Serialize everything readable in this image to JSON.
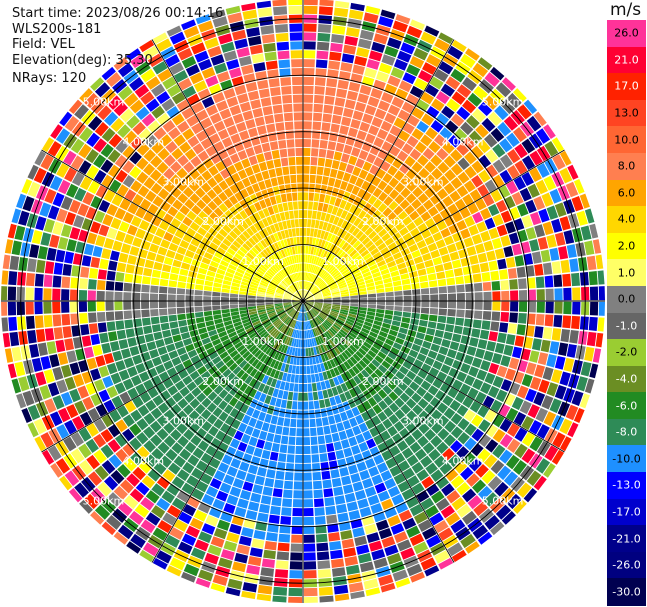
{
  "header": {
    "start_time": "Start time: 2023/08/26 00:14:16",
    "instrument": "WLS200s-181",
    "field": "Field: VEL",
    "elevation": "Elevation(deg): 35.30",
    "nrays": "NRays: 120"
  },
  "colorbar": {
    "unit": "m/s",
    "labels": [
      "26.0",
      "21.0",
      "17.0",
      "13.0",
      "10.0",
      "8.0",
      "6.0",
      "4.0",
      "2.0",
      "1.0",
      "0.0",
      "-1.0",
      "-2.0",
      "-4.0",
      "-6.0",
      "-8.0",
      "-10.0",
      "-13.0",
      "-17.0",
      "-21.0",
      "-26.0",
      "-30.0"
    ],
    "colors": [
      "#ff3399",
      "#ff0033",
      "#ff2200",
      "#ff4422",
      "#ff6633",
      "#ff7f50",
      "#ffa500",
      "#ffd700",
      "#ffff00",
      "#ffff66",
      "#808080",
      "#666666",
      "#9acd32",
      "#6b8e23",
      "#228b22",
      "#2e8b57",
      "#1e90ff",
      "#0000ff",
      "#0000cd",
      "#00008b",
      "#000080",
      "#000050"
    ]
  },
  "chart_data": {
    "type": "heatmap",
    "plot": "PPI polar scan",
    "field": "VEL",
    "units": "m/s",
    "elevation_deg": 35.3,
    "n_rays": 120,
    "range_rings_km": [
      1.0,
      2.0,
      3.0,
      4.0,
      5.0
    ],
    "ring_labels": [
      "1.00km",
      "2.00km",
      "3.00km",
      "4.00km",
      "5.00km"
    ],
    "vmin": -30.0,
    "vmax": 26.0,
    "pattern": {
      "north_sector": "positive velocities (orange ~8 m/s near top, yellow ~2 m/s near center)",
      "south_sector": "negative velocities (green ~-6 m/s, blue ~-8 to -10 m/s along south)",
      "horizontal_band": "near zero (gray) along east-west axis",
      "outer_ranges": "noisy random colors beyond ~3.5 km"
    }
  }
}
